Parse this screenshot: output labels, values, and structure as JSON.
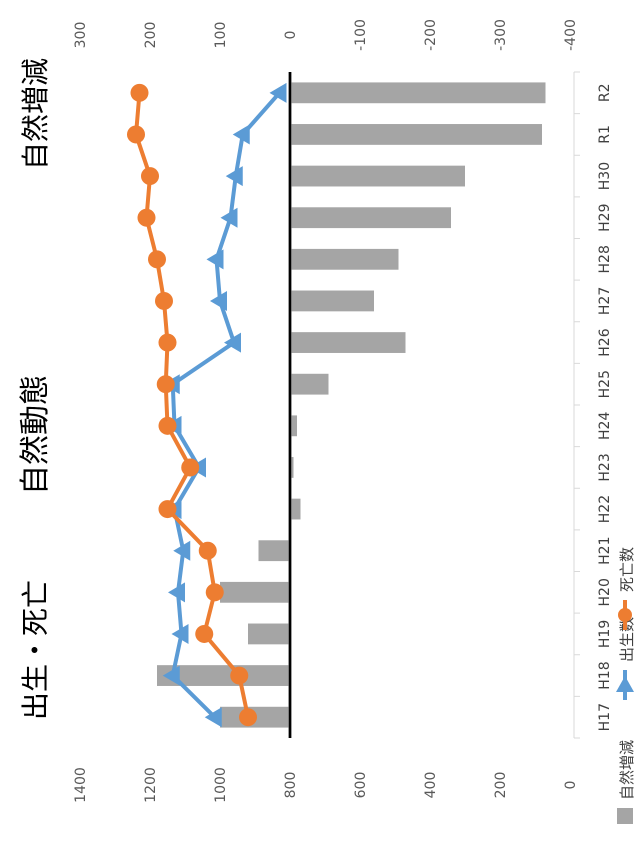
{
  "chart_data": {
    "type": "bar+line",
    "title": "自然動態",
    "left_axis_title": "出生・死亡",
    "right_axis_title": "自然増減",
    "categories": [
      "H17",
      "H18",
      "H19",
      "H20",
      "H21",
      "H22",
      "H23",
      "H24",
      "H25",
      "H26",
      "H27",
      "H28",
      "H29",
      "H30",
      "R1",
      "R2"
    ],
    "births_deaths_axis": {
      "ticks": [
        "0",
        "200",
        "400",
        "600",
        "800",
        "1000",
        "1200",
        "1400"
      ],
      "min": 0,
      "max": 1400
    },
    "natural_change_axis": {
      "ticks": [
        "300",
        "200",
        "100",
        "0",
        "-100",
        "-200",
        "-300",
        "-400"
      ],
      "min": -400,
      "max": 300
    },
    "series": [
      {
        "name": "自然増減",
        "type": "bar",
        "axis": "natural_change",
        "values": [
          100,
          190,
          60,
          100,
          45,
          -15,
          -5,
          -10,
          -55,
          -165,
          -120,
          -155,
          -230,
          -250,
          -360,
          -365
        ]
      },
      {
        "name": "出生数",
        "type": "line",
        "axis": "births_deaths",
        "values": [
          1015,
          1135,
          1110,
          1120,
          1105,
          1130,
          1060,
          1130,
          1135,
          960,
          1000,
          1010,
          970,
          955,
          935,
          830
        ]
      },
      {
        "name": "死亡数",
        "type": "line",
        "axis": "births_deaths",
        "values": [
          920,
          945,
          1045,
          1015,
          1035,
          1150,
          1085,
          1150,
          1155,
          1150,
          1160,
          1180,
          1210,
          1200,
          1240,
          1230
        ]
      }
    ],
    "colors": {
      "自然増減": "#a5a5a5",
      "出生数": "#5b9bd5",
      "死亡数": "#ed7d31"
    },
    "legend_position": "bottom",
    "grid": false
  }
}
